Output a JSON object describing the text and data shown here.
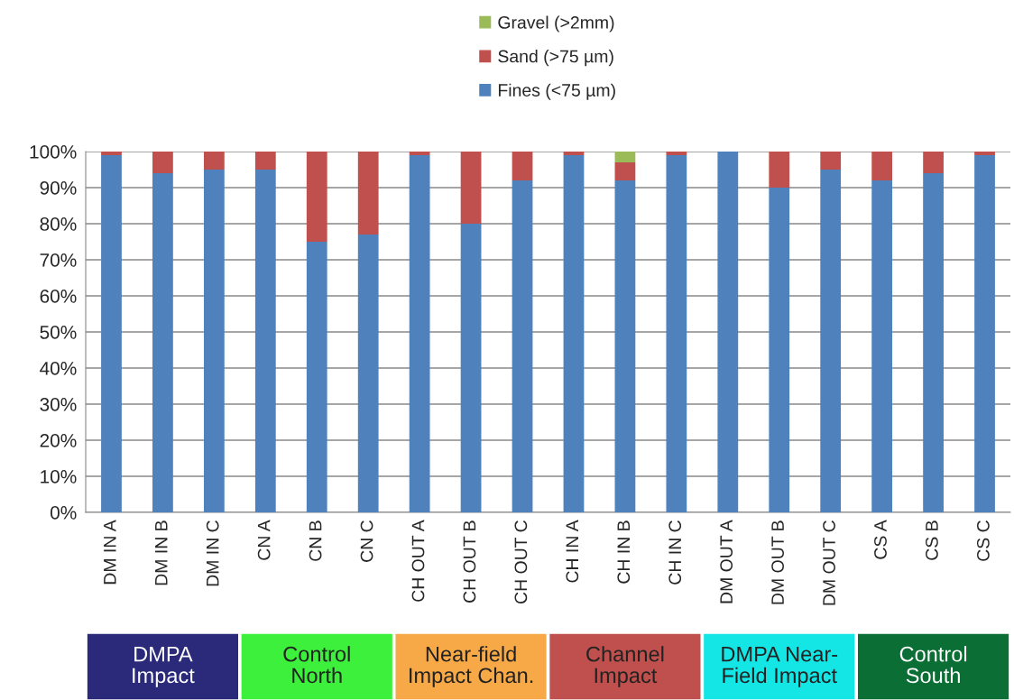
{
  "chart_data": {
    "type": "bar",
    "stacked": true,
    "categories": [
      "DM IN A",
      "DM IN B",
      "DM IN C",
      "CN A",
      "CN B",
      "CN C",
      "CH OUT A",
      "CH OUT B",
      "CH OUT C",
      "CH IN A",
      "CH IN B",
      "CH IN C",
      "DM OUT A",
      "DM OUT B",
      "DM OUT C",
      "CS A",
      "CS B",
      "CS C"
    ],
    "series": [
      {
        "name": "Fines (<75 µm)",
        "color": "#4f81bd",
        "values": [
          99,
          94,
          95,
          95,
          75,
          77,
          99,
          80,
          92,
          99,
          92,
          99,
          100,
          90,
          95,
          92,
          94,
          99
        ]
      },
      {
        "name": "Sand (>75 µm)",
        "color": "#c0504d",
        "values": [
          1,
          6,
          5,
          5,
          25,
          23,
          1,
          20,
          8,
          1,
          5,
          1,
          null,
          10,
          5,
          8,
          6,
          1
        ]
      },
      {
        "name": "Gravel (>2mm)",
        "color": "#9bbb59",
        "values": [
          null,
          null,
          null,
          null,
          null,
          null,
          null,
          null,
          null,
          null,
          3,
          null,
          null,
          null,
          null,
          null,
          null,
          null
        ]
      }
    ],
    "ylim": [
      0,
      100
    ],
    "yticks": [
      {
        "value": 0,
        "label": "0%"
      },
      {
        "value": 10,
        "label": "10%"
      },
      {
        "value": 20,
        "label": "20%"
      },
      {
        "value": 30,
        "label": "30%"
      },
      {
        "value": 40,
        "label": "40%"
      },
      {
        "value": 50,
        "label": "50%"
      },
      {
        "value": 60,
        "label": "60%"
      },
      {
        "value": 70,
        "label": "70%"
      },
      {
        "value": 80,
        "label": "80%"
      },
      {
        "value": 90,
        "label": "90%"
      },
      {
        "value": 100,
        "label": "100%"
      }
    ],
    "grid": "y",
    "legend": "top",
    "annotations": [
      "DMPA\nImpact",
      "Control\nNorth",
      "Near-field\nImpact Chan.",
      "Channel\nImpact",
      "DMPA Near-\nField Impact",
      "Control\nSouth"
    ]
  }
}
